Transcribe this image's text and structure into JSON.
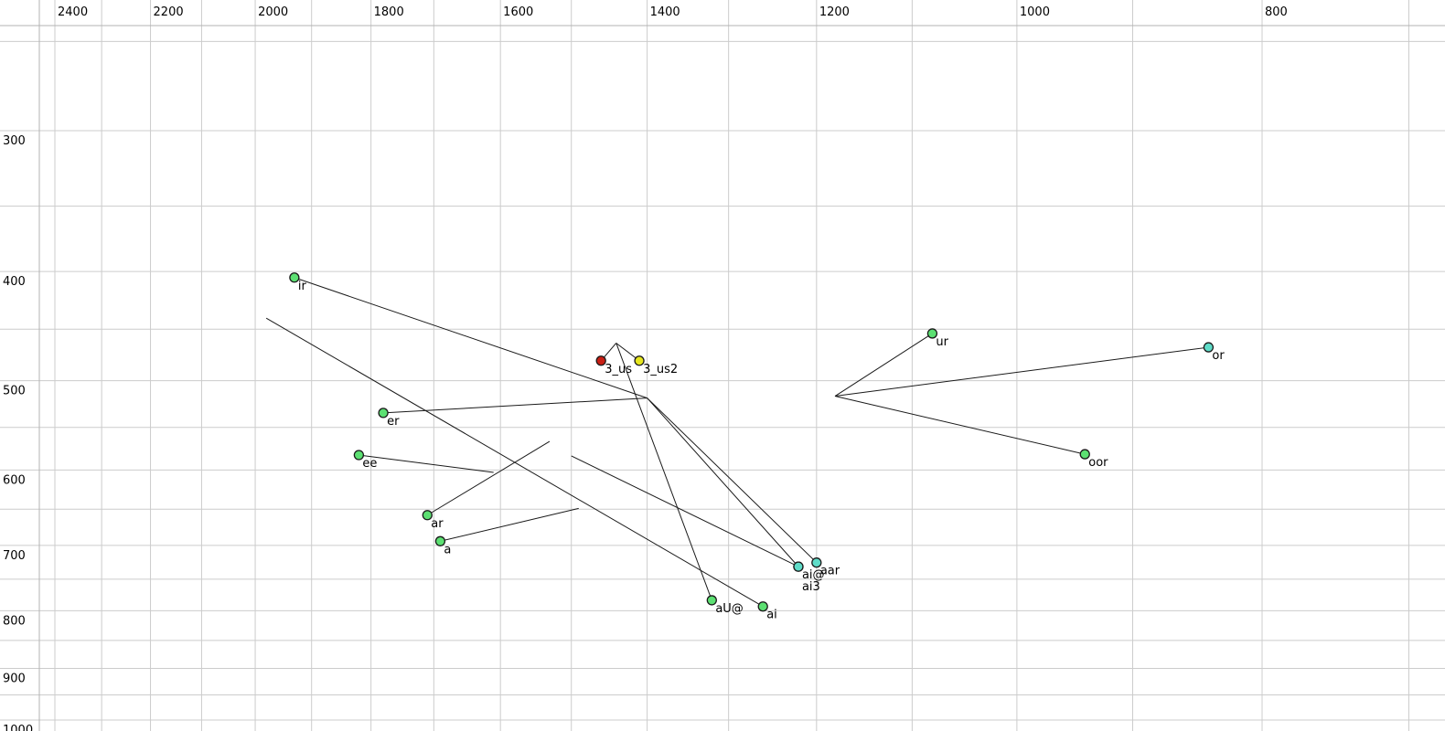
{
  "chart_data": {
    "type": "scatter",
    "title": "",
    "description_visible_text_only": true,
    "x_axis": {
      "scale": "log",
      "reversed": true,
      "tick_labels": [
        "2400",
        "2200",
        "2000",
        "1800",
        "1600",
        "1400",
        "1200",
        "1000",
        "800"
      ],
      "tick_values": [
        2400,
        2200,
        2000,
        1800,
        1600,
        1400,
        1200,
        1000,
        800
      ],
      "gridline_values": [
        2400,
        2300,
        2200,
        2100,
        2000,
        1900,
        1800,
        1700,
        1600,
        1500,
        1400,
        1300,
        1200,
        1100,
        1000,
        900,
        800,
        700
      ],
      "range": [
        2440,
        680
      ]
    },
    "y_axis": {
      "scale": "log",
      "reversed": true,
      "tick_labels": [
        "300",
        "400",
        "500",
        "600",
        "700",
        "800",
        "900",
        "1000"
      ],
      "tick_values": [
        300,
        400,
        500,
        600,
        700,
        800,
        900,
        1000
      ],
      "gridline_values": [
        250,
        300,
        350,
        400,
        450,
        500,
        550,
        600,
        650,
        700,
        750,
        800,
        850,
        900,
        950,
        1000
      ],
      "range": [
        242,
        1023
      ]
    },
    "marker_colors": {
      "green": "#5ce072",
      "cyan": "#5fdcc8",
      "red": "#c81e14",
      "yellow": "#e6e61e"
    },
    "line_color": "#1a1a1a",
    "grid_color": "#cccccc",
    "frame_color": "#b3b3b3",
    "points": [
      {
        "label": "ir",
        "f2": 1930,
        "f1": 405,
        "color": "green"
      },
      {
        "label": "er",
        "f2": 1780,
        "f1": 534,
        "color": "green"
      },
      {
        "label": "ee",
        "f2": 1820,
        "f1": 582,
        "color": "green"
      },
      {
        "label": "ar",
        "f2": 1710,
        "f1": 658,
        "color": "green"
      },
      {
        "label": "a",
        "f2": 1690,
        "f1": 694,
        "color": "green"
      },
      {
        "label": "3_us",
        "f2": 1460,
        "f1": 480,
        "color": "red"
      },
      {
        "label": "3_us2",
        "f2": 1410,
        "f1": 480,
        "color": "yellow"
      },
      {
        "label": "ur",
        "f2": 1080,
        "f1": 454,
        "color": "green"
      },
      {
        "label": "or",
        "f2": 840,
        "f1": 467,
        "color": "cyan"
      },
      {
        "label": "oor",
        "f2": 940,
        "f1": 581,
        "color": "green"
      },
      {
        "label": "ai@",
        "f2": 1220,
        "f1": 731,
        "color": "cyan"
      },
      {
        "label": "ai3",
        "f2": 1220,
        "f1": 731,
        "color": "cyan",
        "label_dy": 26
      },
      {
        "label": "aar",
        "f2": 1200,
        "f1": 725,
        "color": "cyan"
      },
      {
        "label": "aU@",
        "f2": 1320,
        "f1": 783,
        "color": "green"
      },
      {
        "label": "ai",
        "f2": 1260,
        "f1": 793,
        "color": "green"
      }
    ],
    "trajectories": [
      {
        "from": "ir",
        "to": {
          "f2": 1400,
          "f1": 518
        }
      },
      {
        "from": "er",
        "to": {
          "f2": 1400,
          "f1": 518
        }
      },
      {
        "from": "ai@",
        "to": {
          "f2": 1400,
          "f1": 518
        }
      },
      {
        "from": "aar",
        "to": {
          "f2": 1400,
          "f1": 518
        }
      },
      {
        "from": "3_us",
        "to": {
          "f2": 1440,
          "f1": 463
        }
      },
      {
        "from": "3_us2",
        "to": {
          "f2": 1440,
          "f1": 463
        }
      },
      {
        "from": "aU@",
        "to": {
          "f2": 1440,
          "f1": 463
        }
      },
      {
        "from": "ai",
        "to": {
          "f2": 1980,
          "f1": 440
        }
      },
      {
        "from": "ai3",
        "to": {
          "f2": 1500,
          "f1": 583
        }
      },
      {
        "from": "ur",
        "to": {
          "f2": 1180,
          "f1": 516
        }
      },
      {
        "from": "or",
        "to": {
          "f2": 1180,
          "f1": 516
        }
      },
      {
        "from": "oor",
        "to": {
          "f2": 1180,
          "f1": 516
        }
      },
      {
        "from": "ee",
        "to": {
          "f2": 1610,
          "f1": 603
        }
      },
      {
        "from": "ar",
        "to": {
          "f2": 1530,
          "f1": 566
        }
      },
      {
        "from": "a",
        "to": {
          "f2": 1490,
          "f1": 649
        }
      }
    ]
  }
}
